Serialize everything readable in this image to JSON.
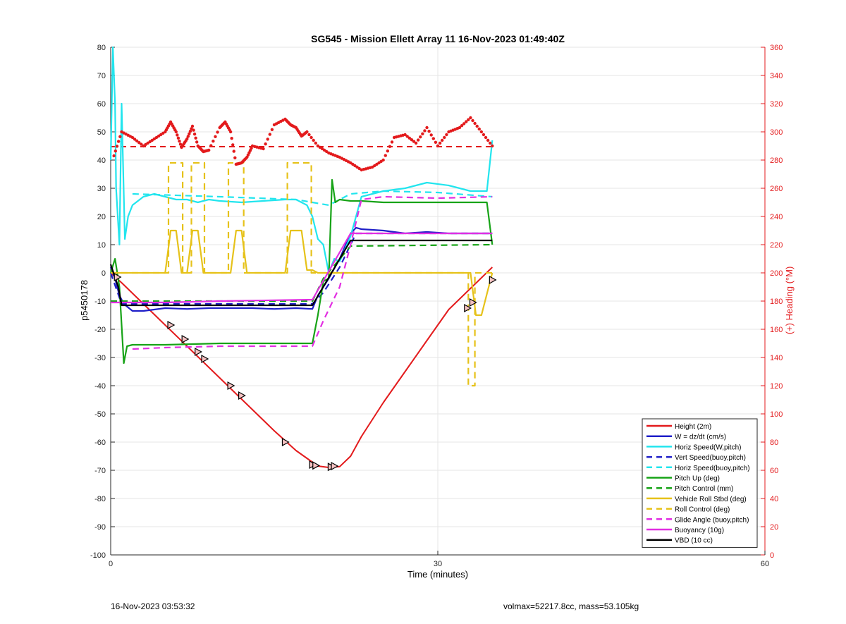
{
  "chart_data": {
    "type": "line",
    "title": "SG545 - Mission Ellett Array 11 16-Nov-2023 01:49:40Z",
    "xlabel": "Time (minutes)",
    "ylabel": "p5450178",
    "y2label": "(+) Heading (°M)",
    "xlim": [
      0,
      60
    ],
    "ylim": [
      -100,
      80
    ],
    "y2lim": [
      0,
      360
    ],
    "xticks": [
      0,
      30,
      60
    ],
    "yticks": [
      -100,
      -90,
      -80,
      -70,
      -60,
      -50,
      -40,
      -30,
      -20,
      -10,
      0,
      10,
      20,
      30,
      40,
      50,
      60,
      70,
      80
    ],
    "y2ticks": [
      0,
      20,
      40,
      60,
      80,
      100,
      120,
      140,
      160,
      180,
      200,
      220,
      240,
      260,
      280,
      300,
      320,
      340,
      360
    ],
    "grid": true,
    "legend_position": "bottom-right",
    "colors": {
      "height": "#e31a1c",
      "w": "#1f1fc8",
      "horiz_w": "#22e5ee",
      "pitch": "#17a317",
      "roll": "#e6c21a",
      "glide": "#e22ee2",
      "buoy": "#e22ee2",
      "vbd": "#000000",
      "heading": "#e31a1c",
      "axis_right": "#e31a1c"
    },
    "series": [
      {
        "name": "Height (2m)",
        "color": "#e31a1c",
        "style": "solid",
        "x": [
          0,
          1,
          3,
          5,
          7,
          9,
          11,
          13,
          15,
          17,
          19,
          20,
          21,
          22,
          23,
          25,
          27,
          29,
          31,
          33,
          35
        ],
        "y": [
          0,
          -3.5,
          -11,
          -18.5,
          -26,
          -33.5,
          -41,
          -48.5,
          -56,
          -63,
          -68.5,
          -69,
          -68.7,
          -65,
          -58,
          -46,
          -35,
          -24,
          -13,
          -5.5,
          2
        ]
      },
      {
        "name": "W = dz/dt (cm/s)",
        "color": "#1f1fc8",
        "style": "solid",
        "x": [
          0,
          0.4,
          0.8,
          1.2,
          2,
          3,
          5,
          7,
          9,
          11,
          13,
          15,
          17,
          18.5,
          19,
          20,
          21,
          22,
          22.5,
          23,
          25,
          27,
          29,
          31,
          33,
          35
        ],
        "y": [
          2,
          -2,
          -8,
          -11,
          -13.5,
          -13.5,
          -12.5,
          -12.8,
          -12.5,
          -12.5,
          -12.5,
          -12.8,
          -12.5,
          -12.8,
          -8,
          -2,
          5,
          14,
          16,
          15.5,
          15,
          14,
          14.5,
          14,
          14,
          14
        ]
      },
      {
        "name": "Horiz Speed(W,pitch)",
        "color": "#22e5ee",
        "style": "solid",
        "x": [
          0,
          0.2,
          0.4,
          0.5,
          0.8,
          1,
          1.3,
          1.6,
          2,
          3,
          4,
          5,
          6,
          7,
          8,
          9,
          10,
          12,
          14,
          16,
          17,
          18,
          18.5,
          19,
          19.5,
          20,
          20.5,
          21,
          22,
          23,
          25,
          27,
          29,
          31,
          33,
          34.5,
          35
        ],
        "y": [
          40,
          80,
          60,
          30,
          10,
          60,
          12,
          20,
          24,
          27,
          28,
          27,
          26,
          26,
          25,
          26,
          25.5,
          25,
          25.5,
          26,
          26,
          24,
          20,
          12,
          10,
          0,
          5,
          4,
          13,
          27,
          29,
          30,
          32,
          31,
          29,
          29,
          47
        ]
      },
      {
        "name": "Vert Speed(buoy,pitch)",
        "color": "#1f1fc8",
        "style": "dashed",
        "x": [
          0,
          1,
          18.5,
          19.5,
          21,
          22.5,
          35
        ],
        "y": [
          0,
          -11,
          -11,
          -7,
          2,
          14,
          14
        ]
      },
      {
        "name": "Horiz Speed(buoy,pitch)",
        "color": "#22e5ee",
        "style": "dashed",
        "x": [
          2,
          10,
          17,
          18.5,
          20,
          22,
          25,
          30,
          35
        ],
        "y": [
          28,
          27,
          26,
          25,
          24,
          28,
          29,
          28.5,
          27
        ]
      },
      {
        "name": "Pitch Up (deg)",
        "color": "#17a317",
        "style": "solid",
        "x": [
          0,
          0.4,
          0.8,
          1.2,
          1.5,
          2,
          5,
          10,
          15,
          18.5,
          19,
          19.5,
          20,
          20.3,
          20.6,
          21,
          22,
          23,
          25,
          30,
          34.5,
          35
        ],
        "y": [
          0,
          5,
          -5,
          -32,
          -26,
          -25.5,
          -25.5,
          -25,
          -25,
          -25,
          -15,
          -3,
          -2,
          33,
          25,
          26,
          25.5,
          25.5,
          25,
          25,
          25,
          10
        ]
      },
      {
        "name": "Pitch Control (mm)",
        "color": "#17a317",
        "style": "dashed",
        "x": [
          0,
          2,
          18.5,
          19.5,
          22,
          35
        ],
        "y": [
          -10,
          -10,
          -10,
          -2,
          9.5,
          10
        ]
      },
      {
        "name": "Vehicle Roll Stbd (deg)",
        "color": "#e6c21a",
        "style": "solid",
        "x": [
          0,
          1,
          2,
          3,
          4,
          5,
          5.5,
          6,
          6.5,
          7,
          7.5,
          8,
          8.5,
          9,
          10,
          11,
          11.5,
          12,
          12.5,
          13,
          14,
          15,
          16,
          16.5,
          17,
          17.5,
          18,
          18.5,
          19,
          20,
          21,
          22,
          24,
          26,
          28,
          30,
          32,
          33,
          33.5,
          34,
          35
        ],
        "y": [
          0,
          0,
          0,
          0,
          0,
          0,
          15,
          15,
          0,
          0,
          15,
          15,
          0,
          0,
          0,
          0,
          15,
          15,
          0,
          0,
          0,
          0,
          0,
          15,
          15,
          15,
          1,
          1,
          0,
          0,
          0,
          0,
          0,
          0,
          0,
          0,
          0,
          0,
          -15,
          -15,
          0
        ]
      },
      {
        "name": "Roll Control (deg)",
        "color": "#e6c21a",
        "style": "dashed",
        "x": [
          0,
          5.3,
          5.3,
          6.6,
          6.6,
          7.4,
          7.4,
          8.6,
          8.6,
          10.8,
          10.8,
          12.2,
          12.2,
          16.2,
          16.2,
          18.4,
          18.4,
          22,
          26,
          30,
          32.8,
          32.8,
          33.4,
          33.4,
          35
        ],
        "y": [
          0,
          0,
          39,
          39,
          0,
          0,
          39,
          39,
          0,
          0,
          39,
          39,
          0,
          0,
          39,
          39,
          0,
          0,
          0,
          0,
          0,
          -40,
          -40,
          0,
          0
        ]
      },
      {
        "name": "Glide Angle (buoy,pitch)",
        "color": "#e22ee2",
        "style": "dashed",
        "x": [
          2,
          5,
          10,
          15,
          18.5,
          19.5,
          21,
          22,
          23,
          25,
          30,
          35
        ],
        "y": [
          -27,
          -26.5,
          -26,
          -26,
          -26,
          -17,
          -5,
          10,
          26,
          27,
          26.5,
          27
        ]
      },
      {
        "name": "Buoyancy (10g)",
        "color": "#e22ee2",
        "style": "solid",
        "x": [
          0,
          1,
          5,
          10,
          18.5,
          22,
          23,
          35
        ],
        "y": [
          -10.5,
          -10.5,
          -10.5,
          -10,
          -9.5,
          14,
          14,
          14
        ]
      },
      {
        "name": "VBD (10 cc)",
        "color": "#000000",
        "style": "solid",
        "x": [
          0,
          0.7,
          1,
          18.5,
          22,
          35
        ],
        "y": [
          3,
          -5,
          -11.5,
          -11.5,
          11.5,
          11.5
        ]
      }
    ],
    "heading_series": {
      "name": "Heading",
      "color": "#e31a1c",
      "x": [
        0.3,
        1,
        2,
        3,
        4,
        5,
        5.5,
        6,
        6.5,
        7,
        7.5,
        8,
        8.5,
        9,
        10,
        10.5,
        11,
        11.5,
        12,
        12.5,
        13,
        14,
        15,
        16,
        16.5,
        17,
        17.5,
        18,
        19,
        20,
        21,
        22,
        23,
        24,
        25,
        26,
        27,
        28,
        29,
        30,
        31,
        32,
        33,
        34,
        35
      ],
      "y": [
        283,
        300,
        296,
        290,
        295,
        300,
        307,
        300,
        289,
        295,
        304,
        290,
        286,
        287,
        303,
        307,
        300,
        277,
        278,
        282,
        290,
        288,
        305,
        309,
        305,
        303,
        297,
        300,
        290,
        285,
        282,
        278,
        273,
        275,
        280,
        296,
        298,
        292,
        303,
        290,
        300,
        303,
        310,
        300,
        290
      ]
    },
    "heading_reference": {
      "value": 289.5,
      "color": "#e31a1c",
      "x": [
        0,
        35
      ]
    },
    "markers": {
      "x": [
        0.6,
        5.5,
        6.8,
        8,
        8.6,
        11,
        12,
        16,
        18.5,
        18.8,
        20.2,
        20.5,
        32.7,
        33.2,
        35
      ],
      "y": [
        -1.5,
        -18.5,
        -23.5,
        -28,
        -30.5,
        -40,
        -43.5,
        -60,
        -68,
        -68.3,
        -68.8,
        -68.5,
        -12.5,
        -10.5,
        -2.5
      ]
    }
  },
  "footer": {
    "timestamp": "16-Nov-2023 03:53:32",
    "info": "volmax=52217.8cc, mass=53.105kg"
  }
}
